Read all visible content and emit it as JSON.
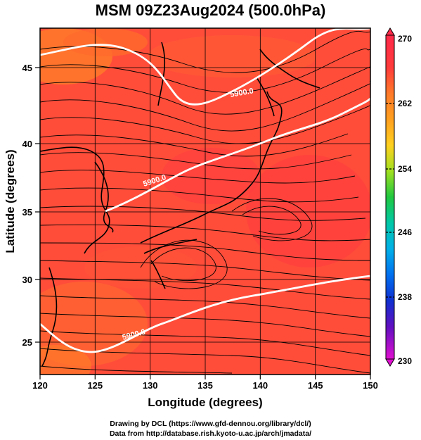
{
  "title": "MSM 09Z23Aug2024 (500.0hPa)",
  "x_axis": {
    "label": "Longitude (degrees)",
    "ticks": [
      "120",
      "125",
      "130",
      "135",
      "140",
      "145",
      "150"
    ]
  },
  "y_axis": {
    "label": "Latitude  (degrees)",
    "ticks": [
      "25",
      "30",
      "35",
      "40",
      "45"
    ]
  },
  "colorbar": {
    "ticks": [
      "270",
      "262",
      "254",
      "246",
      "238",
      "230"
    ],
    "colors": [
      "#ff2a6e",
      "#ff3a3a",
      "#ff5a2a",
      "#ff8c1a",
      "#ffc020",
      "#d0e020",
      "#7ad41a",
      "#20c040",
      "#00c0a0",
      "#00b8e0",
      "#0090f0",
      "#0040e0",
      "#1010b0",
      "#8010c0",
      "#d010d0"
    ]
  },
  "contours": [
    {
      "label": "5900.0",
      "lat_at_label": 43.5
    },
    {
      "label": "5900.0",
      "lat_at_label": 37.0
    },
    {
      "label": "5900.0",
      "lat_at_label": 25.5
    }
  ],
  "footer": {
    "line1": "Drawing by DCL (https://www.gfd-dennou.org/library/dcl/)",
    "line2": "Data from http://database.rish.kyoto-u.ac.jp/arch/jmadata/"
  }
}
